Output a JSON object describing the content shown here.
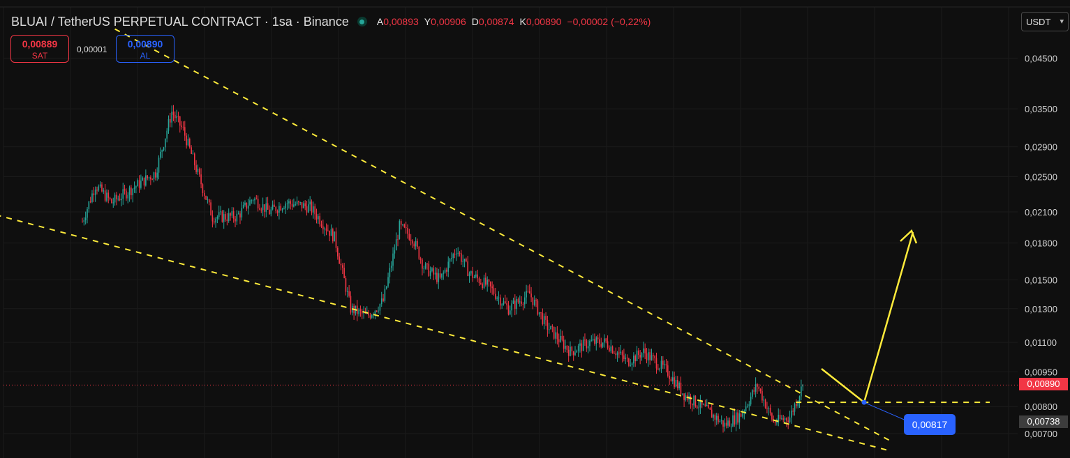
{
  "header": {
    "title": "BLUAI / TetherUS PERPETUAL CONTRACT · 1sa · Binance",
    "ohlc": [
      {
        "key": "A",
        "value": "0,00893"
      },
      {
        "key": "Y",
        "value": "0,00906"
      },
      {
        "key": "D",
        "value": "0,00874"
      },
      {
        "key": "K",
        "value": "0,00890"
      }
    ],
    "change": "−0,00002 (−0,22%)"
  },
  "trade": {
    "sell_price": "0,00889",
    "sell_label": "SAT",
    "spread": "0,00001",
    "buy_price": "0,00890",
    "buy_label": "AL"
  },
  "currency_selector": {
    "value": "USDT"
  },
  "price_tags": {
    "last_price": "0,00890",
    "countdown_price": "0,00738"
  },
  "annotation": {
    "anchor_price": "0,00817"
  },
  "colors": {
    "background": "#0f0f0f",
    "up": "#26a69a",
    "down": "#f23645",
    "trendline": "#ffeb3b",
    "anchor": "#2962ff"
  },
  "chart_data": {
    "type": "candlestick",
    "y_scale": "log",
    "y_axis_ticks": [
      "0,04500",
      "0,03500",
      "0,02900",
      "0,02500",
      "0,02100",
      "0,01800",
      "0,01500",
      "0,01300",
      "0,01100",
      "0,00950",
      "0,00800",
      "0,00700"
    ],
    "y_axis_tick_values": [
      0.045,
      0.035,
      0.029,
      0.025,
      0.021,
      0.018,
      0.015,
      0.013,
      0.011,
      0.0095,
      0.008,
      0.007
    ],
    "ylim": [
      0.0062,
      0.058
    ],
    "candle_count": 250,
    "price_path_closes": [
      [
        0,
        0.02
      ],
      [
        8,
        0.024
      ],
      [
        18,
        0.022
      ],
      [
        30,
        0.0235
      ],
      [
        45,
        0.0255
      ],
      [
        55,
        0.0345
      ],
      [
        62,
        0.0315
      ],
      [
        70,
        0.026
      ],
      [
        80,
        0.0205
      ],
      [
        95,
        0.0205
      ],
      [
        105,
        0.0225
      ],
      [
        115,
        0.021
      ],
      [
        125,
        0.022
      ],
      [
        140,
        0.0215
      ],
      [
        155,
        0.0185
      ],
      [
        165,
        0.013
      ],
      [
        175,
        0.0125
      ],
      [
        185,
        0.0135
      ],
      [
        195,
        0.0195
      ],
      [
        203,
        0.0185
      ],
      [
        210,
        0.016
      ],
      [
        220,
        0.015
      ],
      [
        230,
        0.0175
      ],
      [
        238,
        0.0155
      ],
      [
        250,
        0.0145
      ],
      [
        262,
        0.013
      ],
      [
        275,
        0.014
      ],
      [
        285,
        0.012
      ],
      [
        300,
        0.0105
      ],
      [
        312,
        0.011
      ],
      [
        322,
        0.011
      ],
      [
        335,
        0.01
      ],
      [
        345,
        0.0105
      ],
      [
        360,
        0.0095
      ],
      [
        370,
        0.0085
      ],
      [
        385,
        0.0078
      ],
      [
        395,
        0.0073
      ],
      [
        405,
        0.0077
      ],
      [
        415,
        0.0089
      ],
      [
        425,
        0.0074
      ],
      [
        435,
        0.0076
      ],
      [
        443,
        0.0089
      ]
    ],
    "last_close": 0.0089,
    "last_price_line": 0.0089,
    "trendlines": {
      "upper_channel": [
        [
          20,
          0.052
        ],
        [
          443,
          0.0085
        ]
      ],
      "lower_channel": [
        [
          -60,
          0.021
        ],
        [
          443,
          0.0072
        ]
      ],
      "anchor_level": 0.00817
    },
    "legend": "none",
    "grid": true
  }
}
